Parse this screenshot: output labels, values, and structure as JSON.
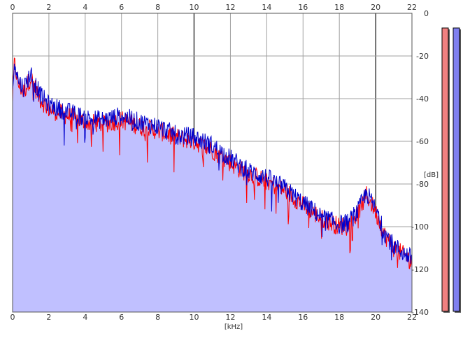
{
  "chart_data": {
    "type": "line",
    "xlabel": "[kHz]",
    "ylabel": "[dB]",
    "xlim": [
      0,
      22
    ],
    "ylim": [
      -140,
      0
    ],
    "x_ticks": [
      0,
      2,
      4,
      6,
      8,
      10,
      12,
      14,
      16,
      18,
      20,
      22
    ],
    "y_ticks": [
      0,
      -20,
      -40,
      -60,
      -80,
      -100,
      -120,
      -140
    ],
    "grid": true,
    "colors": {
      "fill": "#c0c0ff",
      "left_channel": "#ff0000",
      "right_channel": "#0000cc",
      "left_meter": "#f08080",
      "right_meter": "#8080f0",
      "grid": "#a0a0a0",
      "grid_major": "#707070"
    },
    "series": [
      {
        "x": [
          0,
          0.1,
          0.3,
          0.6,
          1,
          1.5,
          2,
          3,
          4,
          5,
          6,
          7,
          8,
          9,
          10,
          11,
          12,
          12.5,
          13,
          14,
          15,
          16,
          17,
          18,
          18.5,
          19,
          19.5,
          20,
          20.5,
          21,
          22
        ],
        "y": [
          -40,
          -23,
          -33,
          -37,
          -30,
          -40,
          -45,
          -48,
          -51,
          -52,
          -50,
          -53,
          -55,
          -58,
          -60,
          -64,
          -70,
          -73,
          -75,
          -79,
          -83,
          -90,
          -96,
          -100,
          -99,
          -94,
          -85,
          -93,
          -104,
          -110,
          -116
        ]
      },
      {
        "x": [
          0,
          0.1,
          0.3,
          0.6,
          1,
          1.5,
          2,
          3,
          4,
          5,
          6,
          7,
          8,
          9,
          10,
          11,
          12,
          12.5,
          13,
          14,
          15,
          16,
          17,
          18,
          18.5,
          19,
          19.5,
          20,
          20.5,
          21,
          22
        ],
        "y": [
          -40,
          -21,
          -31,
          -35,
          -28,
          -38,
          -43,
          -46,
          -49,
          -50,
          -48,
          -51,
          -53,
          -57,
          -58,
          -62,
          -68,
          -71,
          -74,
          -77,
          -82,
          -89,
          -95,
          -99,
          -98,
          -93,
          -84,
          -92,
          -103,
          -109,
          -115
        ]
      }
    ]
  }
}
